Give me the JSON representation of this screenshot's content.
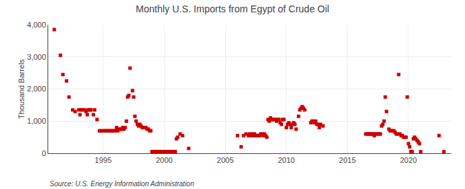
{
  "chart_data": {
    "type": "scatter",
    "title": "Monthly U.S. Imports from Egypt of Crude Oil",
    "ylabel": "Thousand Barrels",
    "annotations": [
      "Source: U.S. Energy Information Administration"
    ],
    "color": "#cc0000",
    "marker": "square",
    "grid": true,
    "xlim": [
      1990.5,
      2023.5
    ],
    "xticks": [
      1995,
      2000,
      2005,
      2010,
      2015,
      2020
    ],
    "ylim": [
      0,
      4000
    ],
    "yticks": [
      0,
      {
        "value": 1000,
        "label": "1,000"
      },
      {
        "value": 2000,
        "label": "2,000"
      },
      {
        "value": 3000,
        "label": "3,000"
      },
      {
        "value": 4000,
        "label": "4,000"
      }
    ],
    "x": [
      1991.0,
      1991.5,
      1991.7,
      1992.0,
      1992.2,
      1992.5,
      1992.7,
      1993.0,
      1993.1,
      1993.2,
      1993.3,
      1993.5,
      1993.6,
      1993.7,
      1993.8,
      1993.9,
      1994.0,
      1994.2,
      1994.3,
      1994.5,
      1994.7,
      1994.8,
      1995.0,
      1995.1,
      1995.2,
      1995.3,
      1995.4,
      1995.5,
      1995.6,
      1995.7,
      1995.8,
      1995.9,
      1996.0,
      1996.1,
      1996.2,
      1996.3,
      1996.4,
      1996.5,
      1996.6,
      1996.7,
      1996.8,
      1996.9,
      1997.0,
      1997.1,
      1997.2,
      1997.4,
      1997.5,
      1997.6,
      1997.7,
      1997.8,
      1997.9,
      1998.0,
      1998.1,
      1998.2,
      1998.3,
      1998.4,
      1998.5,
      1998.6,
      1998.7,
      1998.8,
      1998.9,
      1999.0,
      1999.1,
      1999.2,
      1999.3,
      1999.4,
      1999.5,
      1999.6,
      1999.7,
      1999.8,
      2000.0,
      2000.1,
      2000.2,
      2000.3,
      2000.4,
      2000.5,
      2000.6,
      2000.7,
      2000.8,
      2000.9,
      2001.0,
      2001.1,
      2001.3,
      2001.5,
      2002.0,
      2006.0,
      2006.3,
      2006.5,
      2006.7,
      2006.9,
      2007.0,
      2007.1,
      2007.2,
      2007.3,
      2007.4,
      2007.5,
      2007.6,
      2007.7,
      2007.8,
      2007.9,
      2008.0,
      2008.1,
      2008.2,
      2008.3,
      2008.4,
      2008.5,
      2008.6,
      2008.7,
      2008.8,
      2008.9,
      2009.0,
      2009.1,
      2009.2,
      2009.3,
      2009.4,
      2009.5,
      2009.6,
      2009.7,
      2009.8,
      2010.0,
      2010.1,
      2010.2,
      2010.3,
      2010.4,
      2010.5,
      2010.6,
      2010.7,
      2010.8,
      2011.0,
      2011.1,
      2011.2,
      2011.3,
      2011.4,
      2011.5,
      2012.0,
      2012.1,
      2012.2,
      2012.3,
      2012.4,
      2012.5,
      2012.6,
      2012.7,
      2012.8,
      2013.0,
      2016.5,
      2016.6,
      2016.7,
      2016.8,
      2016.9,
      2017.0,
      2017.1,
      2017.2,
      2017.3,
      2017.4,
      2017.5,
      2017.6,
      2017.7,
      2017.8,
      2017.9,
      2018.0,
      2018.1,
      2018.2,
      2018.4,
      2018.5,
      2018.6,
      2018.7,
      2018.8,
      2018.9,
      2019.0,
      2019.1,
      2019.2,
      2019.3,
      2019.4,
      2019.5,
      2019.6,
      2019.7,
      2019.8,
      2019.9,
      2020.0,
      2020.1,
      2020.2,
      2020.3,
      2020.4,
      2020.5,
      2020.6,
      2020.7,
      2020.8,
      2020.9,
      2021.0,
      2022.5,
      2022.9
    ],
    "values": [
      3850,
      3050,
      2450,
      2250,
      1750,
      1350,
      1300,
      1350,
      1200,
      1350,
      1350,
      1350,
      1300,
      1200,
      1350,
      1350,
      1350,
      1200,
      1350,
      1050,
      700,
      700,
      700,
      700,
      700,
      700,
      700,
      700,
      700,
      700,
      700,
      700,
      700,
      800,
      700,
      750,
      750,
      750,
      800,
      750,
      800,
      1000,
      1750,
      1800,
      2650,
      1950,
      1750,
      1150,
      1000,
      900,
      850,
      900,
      850,
      800,
      800,
      800,
      800,
      750,
      750,
      700,
      700,
      50,
      50,
      50,
      50,
      50,
      50,
      50,
      50,
      50,
      50,
      50,
      50,
      50,
      50,
      50,
      50,
      50,
      50,
      50,
      450,
      500,
      600,
      550,
      150,
      550,
      200,
      550,
      600,
      550,
      600,
      550,
      600,
      550,
      600,
      550,
      550,
      550,
      550,
      600,
      600,
      550,
      600,
      550,
      500,
      1050,
      1000,
      1100,
      1050,
      1050,
      1050,
      1050,
      1000,
      1050,
      1050,
      950,
      900,
      1050,
      1050,
      800,
      900,
      950,
      900,
      800,
      900,
      950,
      900,
      750,
      1150,
      1350,
      1400,
      1450,
      1400,
      1350,
      950,
      1000,
      1000,
      950,
      1000,
      900,
      900,
      800,
      900,
      850,
      600,
      600,
      600,
      600,
      600,
      600,
      600,
      550,
      600,
      600,
      600,
      600,
      600,
      850,
      900,
      1000,
      1750,
      1300,
      750,
      700,
      700,
      700,
      700,
      650,
      600,
      600,
      2450,
      600,
      550,
      550,
      500,
      500,
      500,
      1750,
      300,
      200,
      50,
      50,
      450,
      500,
      450,
      400,
      350,
      300,
      50,
      550,
      50
    ]
  }
}
